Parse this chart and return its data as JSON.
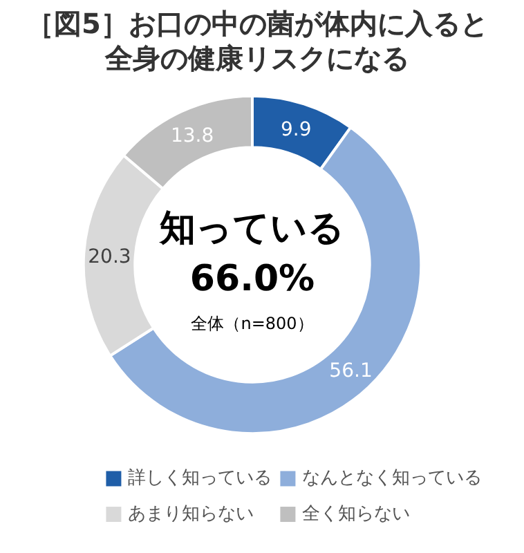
{
  "chart_data": {
    "type": "donut",
    "title": "［図5］お口の中の菌が体内に入ると全身の健康リスクになる",
    "categories": [
      "詳しく知っている",
      "なんとなく知っている",
      "あまり知らない",
      "全く知らない"
    ],
    "values": [
      9.9,
      56.1,
      20.3,
      13.8
    ],
    "colors": [
      "#1f5ea8",
      "#8eaedb",
      "#d9d9d9",
      "#bfbfbf"
    ],
    "data_labels": true,
    "legend": "bottom",
    "annotations": [
      "知っている",
      "66.0%",
      "全体（n=800）"
    ]
  }
}
